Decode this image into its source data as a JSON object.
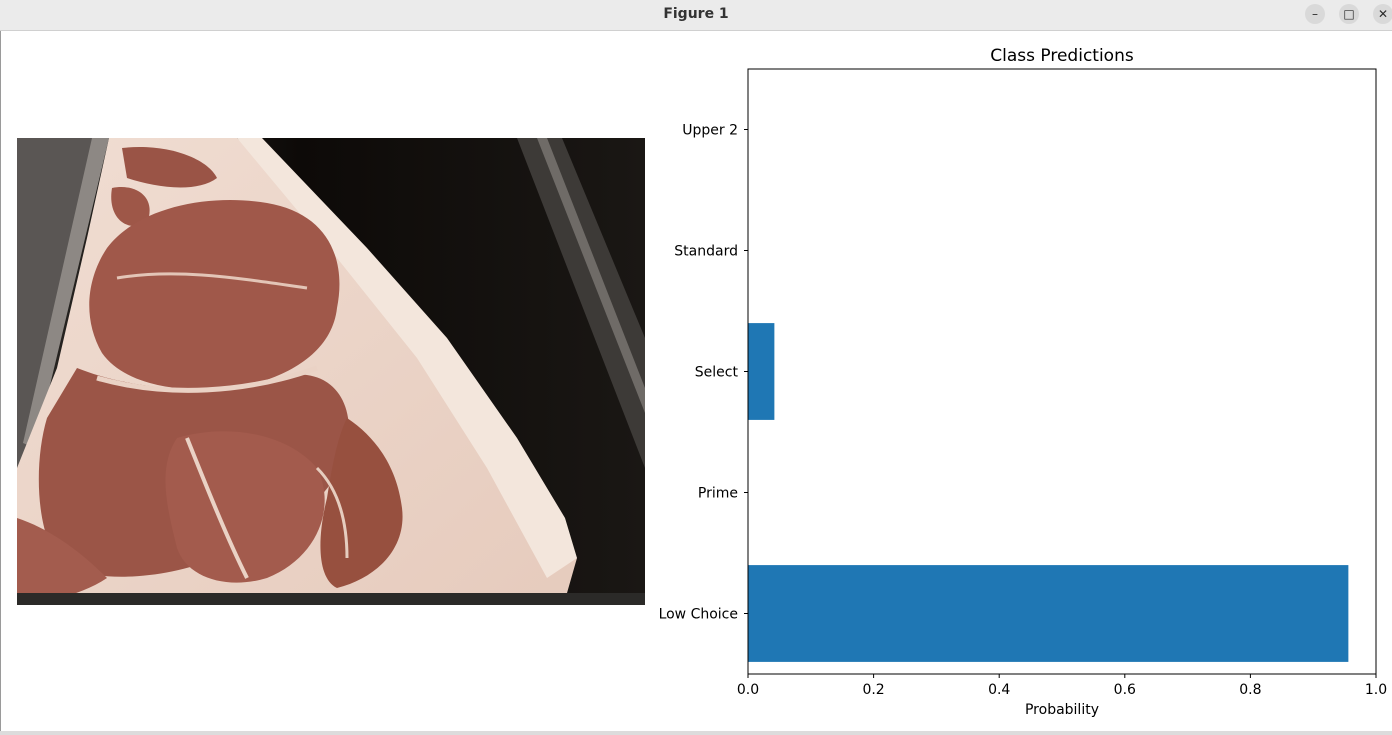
{
  "window": {
    "title": "Figure 1",
    "minimize_icon": "minimize-icon",
    "maximize_icon": "maximize-icon",
    "close_icon": "close-icon"
  },
  "image_panel": {
    "content": "photograph of a cut of beef on a dark background"
  },
  "chart_data": {
    "type": "bar",
    "orientation": "horizontal",
    "title": "Class Predictions",
    "xlabel": "Probability",
    "ylabel": "",
    "categories": [
      "Low Choice",
      "Prime",
      "Select",
      "Standard",
      "Upper 2"
    ],
    "values": [
      0.956,
      0.0,
      0.042,
      0.0,
      0.0
    ],
    "xlim": [
      0,
      1.0
    ],
    "xticks": [
      "0.0",
      "0.2",
      "0.4",
      "0.6",
      "0.8",
      "1.0"
    ],
    "bar_color": "#1f77b4",
    "grid": false
  }
}
